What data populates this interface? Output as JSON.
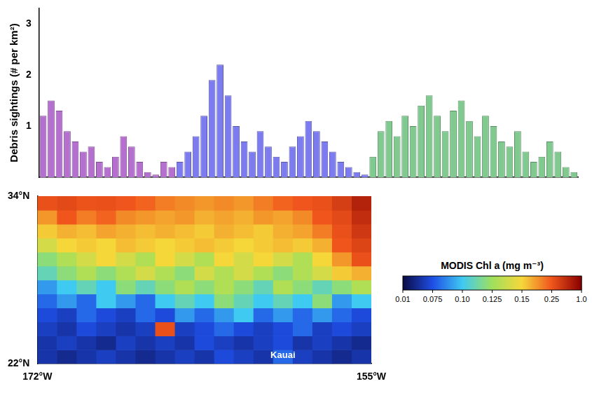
{
  "chart_data": [
    {
      "type": "bar",
      "y_label": "Debris sightings (# per km²)",
      "categories": [
        null,
        null,
        null,
        null,
        null,
        null,
        null,
        null,
        null,
        null,
        null,
        null,
        null,
        null,
        null,
        null,
        null,
        null,
        null,
        null,
        null,
        null,
        null,
        null,
        null,
        null,
        null,
        null,
        null,
        null,
        null,
        null,
        null,
        null,
        null,
        null,
        null,
        null,
        null,
        null,
        null,
        null,
        null,
        null,
        null,
        null,
        null,
        null,
        null,
        null,
        null,
        null,
        null,
        null,
        null,
        null,
        null,
        null,
        null,
        null,
        null,
        null,
        null,
        null,
        null,
        null,
        null
      ],
      "series": [
        {
          "color": "#b46fcf",
          "values": [
            1.2,
            1.5,
            1.3,
            0.9,
            0.7,
            0.5,
            0.6,
            0.3,
            0.2,
            0.4,
            0.8,
            0.6,
            0.3,
            0.1,
            0.05,
            0.3,
            0.2,
            null,
            null,
            null,
            null,
            null,
            null,
            null,
            null,
            null,
            null,
            null,
            null,
            null,
            null,
            null,
            null,
            null,
            null,
            null,
            null,
            null,
            null,
            null,
            null,
            null,
            null,
            null,
            null,
            null,
            null,
            null,
            null,
            null,
            null,
            null,
            null,
            null,
            null,
            null,
            null,
            null,
            null,
            null,
            null,
            null,
            null,
            null,
            null,
            null,
            null
          ]
        },
        {
          "color": "#7c7cf0",
          "values": [
            null,
            null,
            null,
            null,
            null,
            null,
            null,
            null,
            null,
            null,
            null,
            null,
            null,
            null,
            null,
            null,
            null,
            0.3,
            0.5,
            0.8,
            1.2,
            1.9,
            2.2,
            1.6,
            1.0,
            0.7,
            0.5,
            0.9,
            0.6,
            0.4,
            0.3,
            0.6,
            0.8,
            1.1,
            0.9,
            0.7,
            0.5,
            0.3,
            0.2,
            0.1,
            0.05,
            null,
            null,
            null,
            null,
            null,
            null,
            null,
            null,
            null,
            null,
            null,
            null,
            null,
            null,
            null,
            null,
            null,
            null,
            null,
            null,
            null,
            null,
            null,
            null,
            null,
            null
          ]
        },
        {
          "color": "#80c98f",
          "values": [
            null,
            null,
            null,
            null,
            null,
            null,
            null,
            null,
            null,
            null,
            null,
            null,
            null,
            null,
            null,
            null,
            null,
            null,
            null,
            null,
            null,
            null,
            null,
            null,
            null,
            null,
            null,
            null,
            null,
            null,
            null,
            null,
            null,
            null,
            null,
            null,
            null,
            null,
            null,
            null,
            null,
            0.4,
            0.9,
            1.1,
            0.8,
            1.2,
            1.0,
            1.4,
            1.6,
            1.2,
            0.9,
            1.3,
            1.5,
            1.1,
            0.8,
            1.2,
            1.0,
            0.7,
            0.6,
            0.9,
            0.5,
            0.3,
            0.4,
            0.7,
            0.5,
            0.2,
            0.1
          ]
        }
      ],
      "ylim": [
        0,
        3.3
      ],
      "yticks": [
        1,
        2,
        3
      ],
      "grid": false,
      "tick_labels": "y"
    },
    {
      "type": "heatmap",
      "x_edges": [
        -172,
        -171,
        -170,
        -169,
        -168,
        -167,
        -166,
        -165,
        -164,
        -163,
        -162,
        -161,
        -160,
        -159,
        -158,
        -157,
        -156,
        -155
      ],
      "y_edges": [
        22,
        23,
        24,
        25,
        26,
        27,
        28,
        29,
        30,
        31,
        32,
        33,
        34
      ],
      "cells": [
        [
          0.05,
          0.04,
          0.05,
          0.06,
          0.05,
          0.04,
          0.05,
          0.06,
          0.05,
          0.07,
          0.06,
          0.05,
          0.08,
          0.06,
          0.05,
          0.04,
          0.05
        ],
        [
          0.05,
          0.06,
          0.05,
          0.04,
          0.06,
          0.05,
          0.06,
          0.05,
          0.07,
          0.06,
          0.05,
          0.06,
          0.07,
          0.05,
          0.06,
          0.05,
          0.04
        ],
        [
          0.06,
          0.05,
          0.07,
          0.06,
          0.05,
          0.06,
          0.3,
          0.06,
          0.07,
          0.08,
          0.07,
          0.06,
          0.07,
          0.08,
          0.06,
          0.07,
          0.06
        ],
        [
          0.07,
          0.06,
          0.08,
          0.07,
          0.06,
          0.08,
          0.07,
          0.09,
          0.08,
          0.09,
          0.1,
          0.08,
          0.09,
          0.08,
          0.09,
          0.08,
          0.07
        ],
        [
          0.08,
          0.09,
          0.08,
          0.1,
          0.09,
          0.08,
          0.1,
          0.11,
          0.1,
          0.12,
          0.11,
          0.1,
          0.11,
          0.1,
          0.12,
          0.09,
          0.1
        ],
        [
          0.09,
          0.1,
          0.11,
          0.1,
          0.12,
          0.11,
          0.12,
          0.13,
          0.12,
          0.13,
          0.12,
          0.11,
          0.13,
          0.12,
          0.11,
          0.12,
          0.13
        ],
        [
          0.11,
          0.12,
          0.13,
          0.12,
          0.13,
          0.14,
          0.13,
          0.12,
          0.14,
          0.13,
          0.14,
          0.13,
          0.12,
          0.13,
          0.14,
          0.16,
          0.18
        ],
        [
          0.12,
          0.13,
          0.14,
          0.15,
          0.14,
          0.13,
          0.15,
          0.14,
          0.13,
          0.15,
          0.14,
          0.15,
          0.14,
          0.13,
          0.15,
          0.2,
          0.3
        ],
        [
          0.14,
          0.15,
          0.16,
          0.15,
          0.17,
          0.16,
          0.15,
          0.16,
          0.17,
          0.16,
          0.15,
          0.16,
          0.17,
          0.16,
          0.18,
          0.25,
          0.4
        ],
        [
          0.16,
          0.18,
          0.17,
          0.19,
          0.18,
          0.17,
          0.18,
          0.17,
          0.16,
          0.18,
          0.17,
          0.16,
          0.18,
          0.19,
          0.22,
          0.3,
          0.5
        ],
        [
          0.2,
          0.25,
          0.22,
          0.24,
          0.21,
          0.2,
          0.19,
          0.2,
          0.18,
          0.19,
          0.18,
          0.2,
          0.19,
          0.21,
          0.25,
          0.35,
          0.6
        ],
        [
          0.3,
          0.35,
          0.28,
          0.3,
          0.26,
          0.24,
          0.22,
          0.21,
          0.2,
          0.21,
          0.2,
          0.22,
          0.24,
          0.26,
          0.3,
          0.45,
          0.7
        ]
      ],
      "xlim": [
        -172,
        -155
      ],
      "xticks": [
        {
          "value": -172,
          "label": "172°W"
        },
        {
          "value": -155,
          "label": "155°W"
        }
      ],
      "ylim": [
        22,
        34
      ],
      "yticks": [
        {
          "value": 22,
          "label": "22°N"
        },
        {
          "value": 34,
          "label": "34°N"
        }
      ],
      "colorbar": {
        "title": "MODIS Chl a (mg m⁻³)",
        "range": [
          0.01,
          1.0
        ],
        "ticks": [
          0.01,
          0.075,
          {
            "value": 0.1,
            "label": "0.10"
          },
          0.125,
          0.15,
          0.25,
          {
            "value": 1,
            "label": "1.0"
          }
        ]
      },
      "annotations": [
        {
          "text": "Kauai",
          "x": -159.5,
          "y": 22.1
        }
      ]
    }
  ]
}
